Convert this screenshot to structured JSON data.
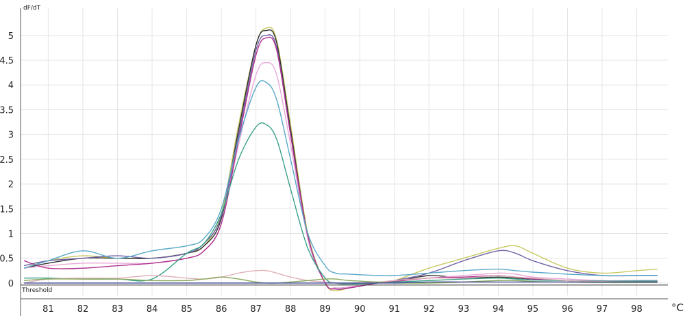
{
  "chart_data": {
    "type": "line",
    "ylabel": "dF/dT",
    "x_unit": "°C",
    "threshold_label": "Threshold",
    "threshold_value": 0,
    "xlim": [
      80.2,
      98.9
    ],
    "ylim": [
      -0.25,
      5.55
    ],
    "x_ticks": [
      81,
      82,
      83,
      84,
      85,
      86,
      87,
      88,
      89,
      90,
      91,
      92,
      93,
      94,
      95,
      96,
      97,
      98
    ],
    "x_tick_labels": [
      "81",
      "82",
      "83",
      "84",
      "85",
      "86",
      "87",
      "88",
      "89",
      "90",
      "91",
      "92",
      "93",
      "94",
      "95",
      "96",
      "97",
      "98"
    ],
    "y_ticks": [
      0,
      0.5,
      1,
      1.5,
      2,
      2.5,
      3,
      3.5,
      4,
      4.5,
      5
    ],
    "y_tick_labels": [
      "0",
      "0.5",
      "1",
      "1.5",
      "2",
      "2.5",
      "3",
      "3.5",
      "4",
      "4.5",
      "5"
    ],
    "grid": true,
    "series": [
      {
        "color": "#c8c860",
        "x": [
          80.3,
          81,
          82,
          83,
          84,
          85,
          85.5,
          86,
          86.5,
          87,
          87.3,
          87.6,
          88,
          88.5,
          89,
          89.3,
          89.7,
          90.5,
          91,
          92,
          93,
          94,
          94.5,
          95,
          96,
          97,
          98,
          98.6
        ],
        "y": [
          0.3,
          0.45,
          0.55,
          0.5,
          0.5,
          0.6,
          0.75,
          1.4,
          3.2,
          4.8,
          5.15,
          4.9,
          3.2,
          1.0,
          0.0,
          -0.15,
          -0.1,
          0.0,
          0.05,
          0.3,
          0.5,
          0.7,
          0.75,
          0.6,
          0.3,
          0.2,
          0.25,
          0.28
        ]
      },
      {
        "color": "#303030",
        "x": [
          80.3,
          81,
          82,
          83,
          84,
          85,
          85.5,
          86,
          86.5,
          87,
          87.3,
          87.6,
          88,
          88.5,
          89,
          89.3,
          89.7,
          90.5,
          91,
          92,
          93,
          94,
          94.5,
          95,
          96,
          97,
          98,
          98.6
        ],
        "y": [
          0.3,
          0.4,
          0.5,
          0.5,
          0.5,
          0.6,
          0.75,
          1.3,
          3.1,
          4.8,
          5.1,
          4.85,
          3.1,
          0.95,
          0.0,
          -0.1,
          -0.08,
          0.0,
          0.02,
          0.15,
          0.1,
          0.12,
          0.1,
          0.08,
          0.05,
          0.03,
          0.05,
          0.05
        ]
      },
      {
        "color": "#7060a8",
        "x": [
          80.3,
          81,
          82,
          83,
          84,
          85,
          85.5,
          86,
          86.5,
          87,
          87.3,
          87.6,
          88,
          88.5,
          89,
          89.3,
          89.7,
          90.5,
          91,
          92,
          93,
          94,
          94.5,
          95,
          96,
          97,
          98,
          98.6
        ],
        "y": [
          0.35,
          0.45,
          0.5,
          0.55,
          0.5,
          0.6,
          0.8,
          1.35,
          3.0,
          4.7,
          5.0,
          4.75,
          3.0,
          0.9,
          0.0,
          -0.12,
          -0.1,
          0.0,
          0.05,
          0.2,
          0.45,
          0.65,
          0.6,
          0.45,
          0.25,
          0.15,
          0.15,
          0.15
        ]
      },
      {
        "color": "#e8a8d8",
        "x": [
          80.3,
          81,
          82,
          83,
          84,
          85,
          85.5,
          86,
          86.5,
          87,
          87.3,
          87.6,
          88,
          88.5,
          89,
          89.3,
          89.7,
          90.5,
          91,
          92,
          93,
          94,
          94.5,
          95,
          96,
          97,
          98,
          98.6
        ],
        "y": [
          0.3,
          0.35,
          0.4,
          0.4,
          0.4,
          0.5,
          0.65,
          1.2,
          2.8,
          4.2,
          4.45,
          4.2,
          2.8,
          0.9,
          0.0,
          -0.1,
          -0.08,
          0.0,
          0.05,
          0.1,
          0.15,
          0.2,
          0.18,
          0.12,
          0.08,
          0.05,
          0.05,
          0.05
        ]
      },
      {
        "color": "#b03090",
        "x": [
          80.3,
          81,
          82,
          83,
          84,
          85,
          85.5,
          86,
          86.5,
          87,
          87.3,
          87.6,
          88,
          88.5,
          89,
          89.3,
          89.7,
          90.5,
          91,
          92,
          93,
          94,
          94.5,
          95,
          96,
          97,
          98,
          98.6
        ],
        "y": [
          0.45,
          0.3,
          0.3,
          0.35,
          0.4,
          0.5,
          0.65,
          1.2,
          2.9,
          4.6,
          4.95,
          4.7,
          3.0,
          0.95,
          0.0,
          -0.12,
          -0.1,
          0.0,
          0.03,
          0.1,
          0.12,
          0.15,
          0.12,
          0.08,
          0.05,
          0.03,
          0.03,
          0.03
        ]
      },
      {
        "color": "#58a8c8",
        "x": [
          80.3,
          81,
          82,
          83,
          84,
          85,
          85.5,
          86,
          86.5,
          87,
          87.3,
          87.6,
          88,
          88.5,
          89,
          89.3,
          89.7,
          90.5,
          91,
          92,
          93,
          94,
          94.5,
          95,
          96,
          97,
          98,
          98.6
        ],
        "y": [
          0.3,
          0.45,
          0.65,
          0.5,
          0.65,
          0.75,
          0.9,
          1.5,
          2.9,
          3.95,
          4.05,
          3.7,
          2.5,
          1.0,
          0.35,
          0.2,
          0.18,
          0.15,
          0.15,
          0.2,
          0.25,
          0.28,
          0.25,
          0.22,
          0.18,
          0.15,
          0.15,
          0.15
        ]
      },
      {
        "color": "#38a088",
        "x": [
          80.3,
          81,
          82,
          83,
          84,
          85,
          85.5,
          86,
          86.5,
          87,
          87.3,
          87.6,
          88,
          88.5,
          89,
          89.3,
          89.7,
          90.5,
          91,
          92,
          93,
          94,
          94.5,
          95,
          96,
          97,
          98,
          98.6
        ],
        "y": [
          0.1,
          0.1,
          0.08,
          0.08,
          0.08,
          0.6,
          0.8,
          1.4,
          2.5,
          3.15,
          3.2,
          2.9,
          1.9,
          0.7,
          0.1,
          0.0,
          -0.02,
          0.0,
          0.02,
          0.05,
          0.08,
          0.1,
          0.08,
          0.06,
          0.05,
          0.04,
          0.04,
          0.04
        ]
      },
      {
        "color": "#e0b0b8",
        "x": [
          80.3,
          81,
          82,
          83,
          84,
          85,
          85.5,
          86,
          86.5,
          87,
          87.3,
          87.6,
          88,
          88.5,
          89,
          89.3,
          89.7,
          90.5,
          91,
          92,
          93,
          94,
          94.5,
          95,
          96,
          97,
          98,
          98.6
        ],
        "y": [
          0.0,
          0.08,
          0.1,
          0.1,
          0.15,
          0.1,
          0.08,
          0.12,
          0.2,
          0.25,
          0.25,
          0.2,
          0.12,
          0.05,
          0.02,
          0.0,
          0.0,
          0.02,
          0.05,
          0.1,
          0.1,
          0.15,
          0.12,
          0.1,
          0.05,
          0.03,
          0.02,
          0.02
        ]
      },
      {
        "color": "#88a858",
        "x": [
          80.3,
          81,
          82,
          83,
          84,
          85,
          85.5,
          86,
          86.5,
          87,
          87.3,
          87.6,
          88,
          88.5,
          89,
          89.3,
          89.7,
          90.5,
          91,
          92,
          93,
          94,
          94.5,
          95,
          96,
          97,
          98,
          98.6
        ],
        "y": [
          0.05,
          0.08,
          0.08,
          0.08,
          0.05,
          0.05,
          0.08,
          0.12,
          0.08,
          0.02,
          0.0,
          0.0,
          0.02,
          0.05,
          0.08,
          0.08,
          0.05,
          0.02,
          0.0,
          0.0,
          0.02,
          0.05,
          0.05,
          0.03,
          0.02,
          0.01,
          0.01,
          0.01
        ]
      },
      {
        "color": "#404898",
        "x": [
          80.3,
          81,
          82,
          83,
          84,
          85,
          85.5,
          86,
          86.5,
          87,
          87.3,
          87.6,
          88,
          88.5,
          89,
          89.3,
          89.7,
          90.5,
          91,
          92,
          93,
          94,
          94.5,
          95,
          96,
          97,
          98,
          98.6
        ],
        "y": [
          0.0,
          0.0,
          0.0,
          0.0,
          0.0,
          0.0,
          0.0,
          0.0,
          0.0,
          0.0,
          0.0,
          0.0,
          0.0,
          0.0,
          0.0,
          0.0,
          0.0,
          0.0,
          0.0,
          0.02,
          0.02,
          0.02,
          0.02,
          0.02,
          0.02,
          0.02,
          0.02,
          0.02
        ]
      }
    ]
  }
}
